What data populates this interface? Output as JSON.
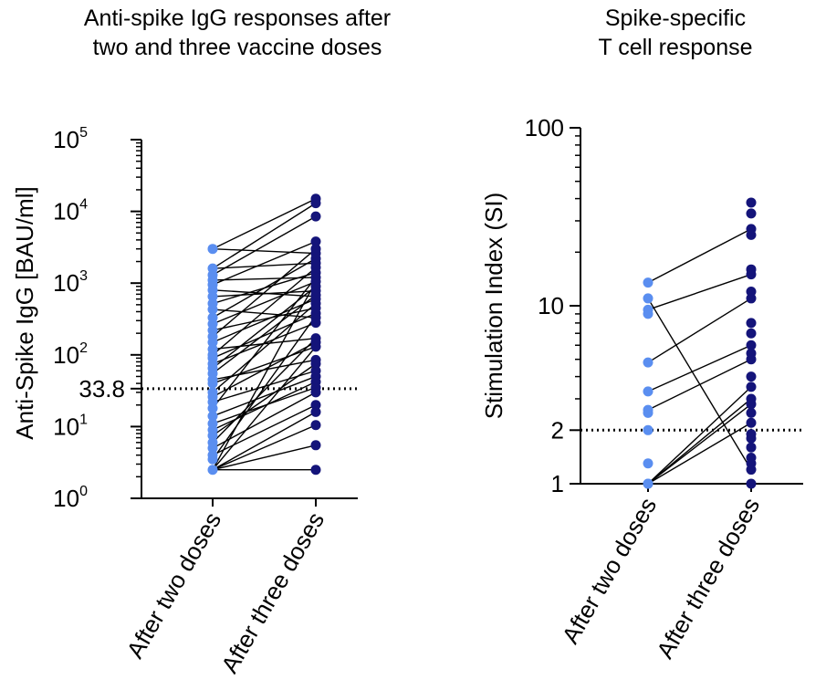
{
  "chart_data": [
    {
      "type": "scatter",
      "title_lines": [
        "Anti-spike IgG responses after",
        "two and three vaccine doses"
      ],
      "ylabel": "Anti-Spike IgG [BAU/ml]",
      "yscale": "log",
      "ylim": [
        1,
        100000
      ],
      "ytick_labels": [
        {
          "base": "10",
          "exp": "0"
        },
        {
          "base": "10",
          "exp": "1"
        },
        {
          "base": "10",
          "exp": "2"
        },
        {
          "base": "10",
          "exp": "3"
        },
        {
          "base": "10",
          "exp": "4"
        },
        {
          "base": "10",
          "exp": "5"
        }
      ],
      "threshold_label": "33.8",
      "threshold": 33.8,
      "categories": [
        "After two doses",
        "After three doses"
      ],
      "colors": {
        "two_doses": "#5a8ef0",
        "three_doses": "#14147a"
      },
      "two_doses_values": [
        3000,
        1600,
        1300,
        1100,
        950,
        800,
        650,
        520,
        430,
        330,
        270,
        220,
        180,
        150,
        120,
        100,
        90,
        75,
        65,
        55,
        45,
        40,
        30,
        26,
        22,
        18,
        14,
        11,
        9,
        7.5,
        6,
        5,
        4,
        3.5,
        2.5
      ],
      "three_doses_values": [
        15000,
        13000,
        8500,
        3800,
        3000,
        2600,
        2200,
        1900,
        1650,
        1400,
        1200,
        1050,
        900,
        780,
        680,
        600,
        520,
        450,
        380,
        330,
        280,
        170,
        150,
        130,
        85,
        75,
        60,
        50,
        42,
        35,
        30,
        20,
        16,
        10.5,
        5.5,
        2.5
      ],
      "pairs": [
        [
          3000,
          2600
        ],
        [
          3000,
          15000
        ],
        [
          1600,
          13000
        ],
        [
          1600,
          1900
        ],
        [
          1300,
          8500
        ],
        [
          1100,
          1200
        ],
        [
          950,
          3800
        ],
        [
          800,
          650
        ],
        [
          650,
          780
        ],
        [
          520,
          1400
        ],
        [
          430,
          330
        ],
        [
          330,
          2200
        ],
        [
          270,
          1050
        ],
        [
          220,
          450
        ],
        [
          180,
          3000
        ],
        [
          150,
          600
        ],
        [
          120,
          170
        ],
        [
          100,
          1650
        ],
        [
          90,
          380
        ],
        [
          75,
          280
        ],
        [
          65,
          900
        ],
        [
          55,
          680
        ],
        [
          45,
          85
        ],
        [
          40,
          130
        ],
        [
          30,
          520
        ],
        [
          26,
          150
        ],
        [
          22,
          60
        ],
        [
          18,
          1200
        ],
        [
          14,
          50
        ],
        [
          11,
          35
        ],
        [
          9,
          42
        ],
        [
          7.5,
          75
        ],
        [
          6,
          170
        ],
        [
          5,
          30
        ],
        [
          4,
          20
        ],
        [
          3.5,
          350
        ],
        [
          2.5,
          16
        ],
        [
          2.5,
          10.5
        ],
        [
          2.5,
          5.5
        ],
        [
          2.5,
          2.5
        ],
        [
          2.5,
          130
        ],
        [
          2.5,
          1050
        ]
      ]
    },
    {
      "type": "scatter",
      "title_lines": [
        "Spike-specific",
        "T cell response"
      ],
      "ylabel": "Stimulation Index (SI)",
      "yscale": "log",
      "ylim": [
        1,
        100
      ],
      "ytick_labels": [
        "1",
        "2",
        "10",
        "100"
      ],
      "yticks": [
        1,
        2,
        10,
        100
      ],
      "threshold": 2,
      "categories": [
        "After two doses",
        "After three doses"
      ],
      "colors": {
        "two_doses": "#5a8ef0",
        "three_doses": "#14147a"
      },
      "two_doses_values": [
        13.5,
        11,
        9.5,
        9,
        4.8,
        3.3,
        2.6,
        2.5,
        2,
        1.3,
        1,
        1
      ],
      "three_doses_values": [
        38,
        33,
        27,
        25,
        16,
        15,
        12,
        11,
        8,
        7,
        6,
        5.4,
        5,
        4,
        3.5,
        3,
        2.8,
        2.5,
        2.2,
        1.9,
        1.8,
        1.6,
        1.4,
        1.3,
        1.2,
        1
      ],
      "pairs": [
        [
          13.5,
          27
        ],
        [
          11,
          1.2
        ],
        [
          9.5,
          15
        ],
        [
          4.8,
          11
        ],
        [
          3.3,
          6
        ],
        [
          2.6,
          5
        ],
        [
          1,
          3.5
        ],
        [
          1,
          3
        ],
        [
          1,
          2.8
        ],
        [
          1,
          2.2
        ]
      ]
    }
  ]
}
